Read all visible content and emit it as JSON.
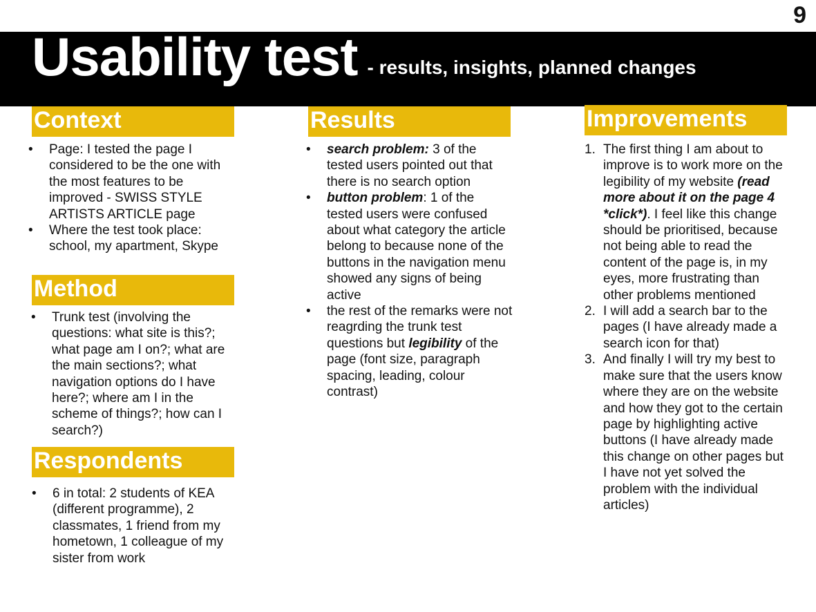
{
  "page_number": "9",
  "title": "Usability test",
  "subtitle": "- results, insights, planned changes",
  "bullet": "•",
  "context": {
    "heading": "Context",
    "items": [
      " Page: I tested the page I considered to be the one with the most features to be improved - SWISS STYLE ARTISTS ARTICLE page",
      " Where the test took place: school, my apartment, Skype"
    ]
  },
  "method": {
    "heading": "Method",
    "items": [
      " Trunk test (involving the questions: what site is this?; what page am I on?; what are the main sections?; what navigation options do I have here?; where am I in the scheme of things?; how can I search?)"
    ]
  },
  "respondents": {
    "heading": "Respondents",
    "items": [
      " 6 in total: 2 students of KEA (different programme), 2 classmates, 1 friend from my hometown, 1 colleague of my sister from work"
    ]
  },
  "results": {
    "heading": "Results",
    "item1_bold": "search problem:",
    "item1_text": " 3 of the tested users pointed out that there is no search option",
    "item2_bold": "button problem",
    "item2_text": ": 1 of the tested users were confused about what category the article belong to because none of the buttons in the navigation menu showed any signs of being active",
    "item3_text1": " the rest of the remarks were not reagrding the trunk test questions but ",
    "item3_bold": "legibility",
    "item3_text2": " of the page (font size, paragraph spacing, leading, colour contrast)"
  },
  "improvements": {
    "heading": "Improvements",
    "item1_num": "1.",
    "item1_text1": " The first thing I am about to improve is to work more on the legibility of my website ",
    "item1_bold": "(read more about it on the page 4 *click*)",
    "item1_text2": ". I feel like this change should be prioritised, because not being able to read the content of the page is, in my eyes, more frustrating than other problems mentioned",
    "item2_num": "2.",
    "item2_text": " I will add a search bar to the pages (I have already made a search icon for that)",
    "item3_num": "3.",
    "item3_text": " And finally I will try my best to make sure that the users know where they are on the website and how they got to the certain page by highlighting active buttons (I have already made this change on other pages but I have not yet solved the problem with the individual articles)"
  }
}
